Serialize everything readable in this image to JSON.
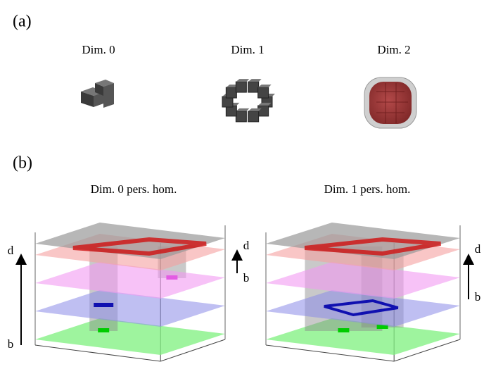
{
  "panel_a": {
    "label": "(a)",
    "items": [
      {
        "title": "Dim. 0"
      },
      {
        "title": "Dim. 1"
      },
      {
        "title": "Dim. 2"
      }
    ]
  },
  "panel_b": {
    "label": "(b)",
    "plots": [
      {
        "title": "Dim. 0 pers. hom.",
        "arrow_top": "d",
        "arrow_bottom": "b"
      },
      {
        "title": "Dim. 1 pers. hom.",
        "arrow_top": "d",
        "arrow_bottom": "b"
      }
    ]
  }
}
